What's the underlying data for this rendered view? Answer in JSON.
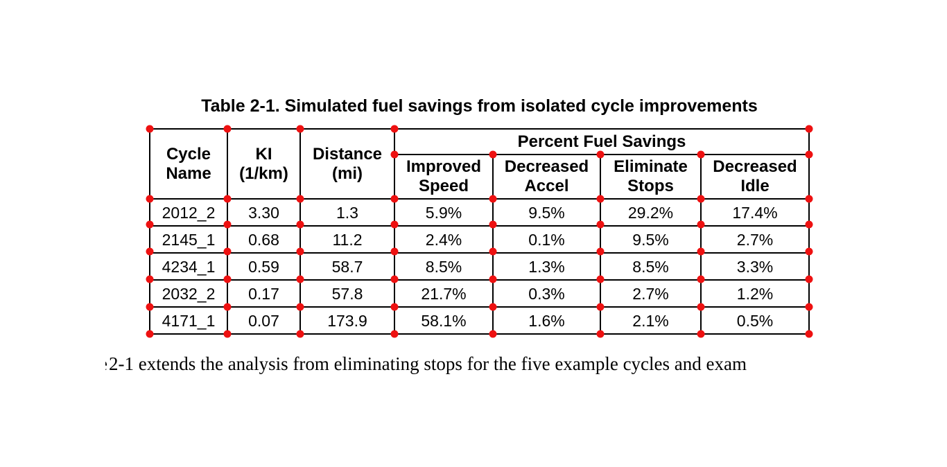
{
  "caption": "Table 2-1. Simulated fuel savings from isolated cycle improvements",
  "table": {
    "headers": {
      "cycle": "Cycle\nName",
      "ki": "KI\n(1/km)",
      "distance": "Distance\n(mi)",
      "group": "Percent Fuel Savings",
      "subs": [
        "Improved\nSpeed",
        "Decreased\nAccel",
        "Eliminate\nStops",
        "Decreased\nIdle"
      ]
    },
    "rows": [
      {
        "cycle": "2012_2",
        "ki": "3.30",
        "distance": "1.3",
        "improved_speed": "5.9%",
        "decreased_accel": "9.5%",
        "eliminate_stops": "29.2%",
        "decreased_idle": "17.4%"
      },
      {
        "cycle": "2145_1",
        "ki": "0.68",
        "distance": "11.2",
        "improved_speed": "2.4%",
        "decreased_accel": "0.1%",
        "eliminate_stops": "9.5%",
        "decreased_idle": "2.7%"
      },
      {
        "cycle": "4234_1",
        "ki": "0.59",
        "distance": "58.7",
        "improved_speed": "8.5%",
        "decreased_accel": "1.3%",
        "eliminate_stops": "8.5%",
        "decreased_idle": "3.3%"
      },
      {
        "cycle": "2032_2",
        "ki": "0.17",
        "distance": "57.8",
        "improved_speed": "21.7%",
        "decreased_accel": "0.3%",
        "eliminate_stops": "2.7%",
        "decreased_idle": "1.2%"
      },
      {
        "cycle": "4171_1",
        "ki": "0.07",
        "distance": "173.9",
        "improved_speed": "58.1%",
        "decreased_accel": "1.6%",
        "eliminate_stops": "2.1%",
        "decreased_idle": "0.5%"
      }
    ]
  },
  "paragraph": {
    "fragment_letter": "e",
    "text": "2-1 extends the analysis from eliminating stops for the five example cycles and exam"
  },
  "annotations": {
    "corner_dot_color": "#ee1111"
  }
}
